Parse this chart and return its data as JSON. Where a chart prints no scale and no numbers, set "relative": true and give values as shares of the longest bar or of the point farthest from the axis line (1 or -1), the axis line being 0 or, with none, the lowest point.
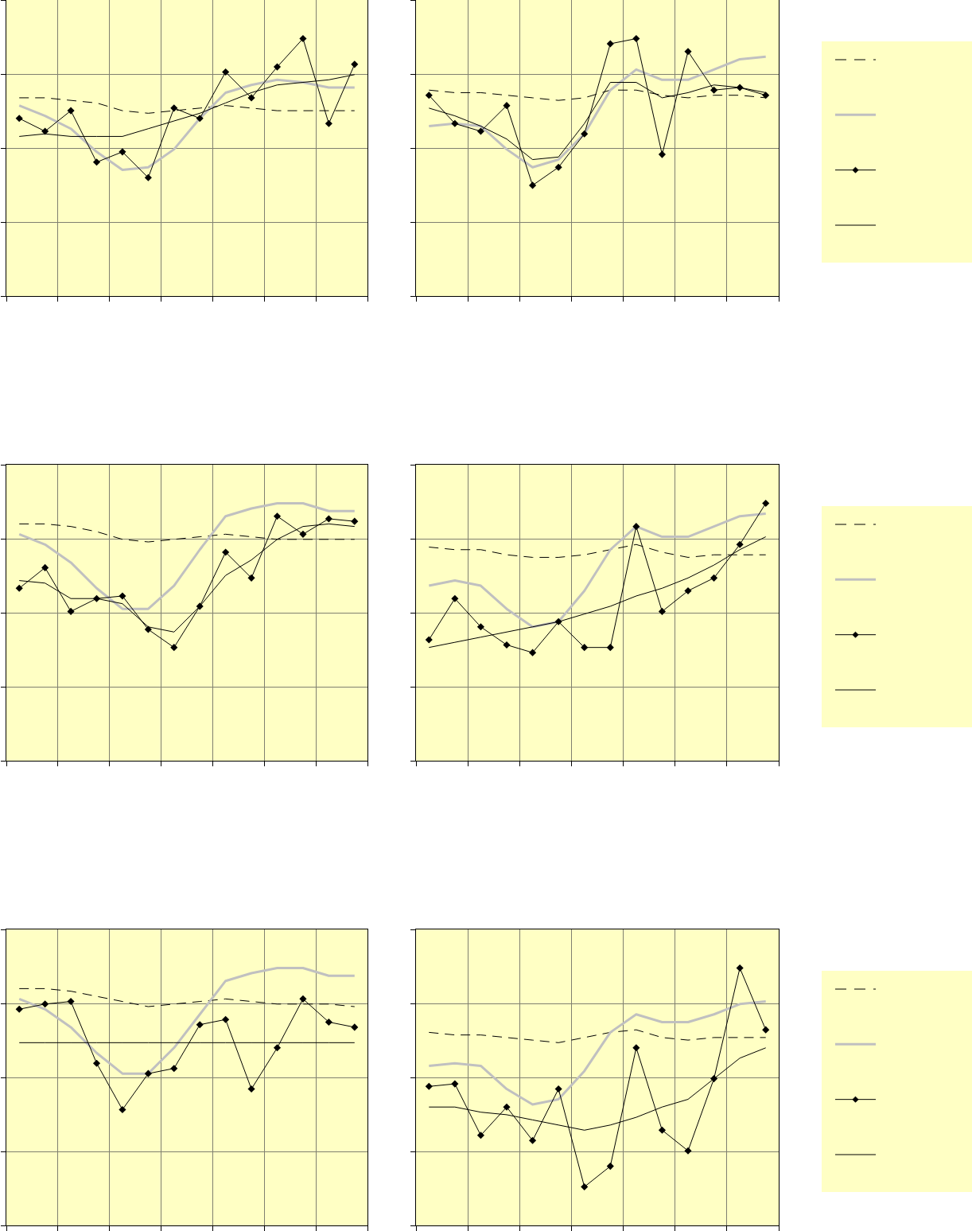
{
  "chart_data": [
    {
      "type": "line",
      "relative": true,
      "grid": true,
      "categories": [
        null,
        null,
        null,
        null,
        null,
        null,
        null,
        null,
        null,
        null,
        null,
        null,
        null,
        null
      ],
      "series": [
        {
          "color": "#000000",
          "line_style": "dashed",
          "values": [
            0.77,
            0.77,
            0.76,
            0.75,
            0.72,
            0.71,
            0.72,
            0.73,
            0.74,
            0.73,
            0.72,
            0.72,
            0.72,
            0.72
          ]
        },
        {
          "color": "#c0c0c0",
          "line_style": "solid",
          "values": [
            0.74,
            0.7,
            0.65,
            0.56,
            0.49,
            0.5,
            0.57,
            0.69,
            0.79,
            0.82,
            0.84,
            0.83,
            0.81,
            0.81
          ]
        },
        {
          "color": "#000000",
          "line_style": "solid",
          "marker": "diamond",
          "values": [
            0.69,
            0.64,
            0.72,
            0.52,
            0.56,
            0.46,
            0.73,
            0.69,
            0.87,
            0.77,
            0.89,
            1,
            0.67,
            0.9
          ]
        },
        {
          "color": "#000000",
          "line_style": "solid",
          "values": [
            0.62,
            0.63,
            0.62,
            0.62,
            0.62,
            0.65,
            0.68,
            0.71,
            0.75,
            0.79,
            0.82,
            0.83,
            0.84,
            0.86
          ]
        }
      ]
    },
    {
      "type": "line",
      "relative": true,
      "grid": true,
      "categories": [
        null,
        null,
        null,
        null,
        null,
        null,
        null,
        null,
        null,
        null,
        null,
        null,
        null,
        null
      ],
      "series": [
        {
          "color": "#000000",
          "line_style": "dashed",
          "values": [
            0.8,
            0.79,
            0.79,
            0.78,
            0.77,
            0.76,
            0.77,
            0.8,
            0.8,
            0.78,
            0.77,
            0.78,
            0.78,
            0.77
          ]
        },
        {
          "color": "#c0c0c0",
          "line_style": "solid",
          "values": [
            0.66,
            0.67,
            0.66,
            0.57,
            0.5,
            0.53,
            0.63,
            0.8,
            0.88,
            0.84,
            0.84,
            0.88,
            0.92,
            0.93
          ]
        },
        {
          "color": "#000000",
          "line_style": "solid",
          "marker": "diamond",
          "values": [
            0.78,
            0.67,
            0.64,
            0.74,
            0.43,
            0.5,
            0.63,
            0.98,
            1,
            0.55,
            0.95,
            0.8,
            0.81,
            0.78
          ]
        },
        {
          "color": "#000000",
          "line_style": "solid",
          "values": [
            0.73,
            0.7,
            0.66,
            0.61,
            0.53,
            0.54,
            0.67,
            0.83,
            0.83,
            0.77,
            0.79,
            0.82,
            0.81,
            0.79
          ]
        }
      ]
    },
    {
      "type": "line",
      "relative": true,
      "grid": true,
      "categories": [
        null,
        null,
        null,
        null,
        null,
        null,
        null,
        null,
        null,
        null,
        null,
        null,
        null,
        null
      ],
      "series": [
        {
          "color": "#000000",
          "line_style": "dashed",
          "values": [
            0.92,
            0.92,
            0.91,
            0.89,
            0.86,
            0.85,
            0.86,
            0.87,
            0.88,
            0.87,
            0.86,
            0.86,
            0.86,
            0.86
          ]
        },
        {
          "color": "#c0c0c0",
          "line_style": "solid",
          "values": [
            0.88,
            0.84,
            0.77,
            0.67,
            0.59,
            0.59,
            0.68,
            0.82,
            0.95,
            0.98,
            1,
            1,
            0.97,
            0.97
          ]
        },
        {
          "color": "#000000",
          "line_style": "solid",
          "marker": "diamond",
          "values": [
            0.67,
            0.75,
            0.58,
            0.63,
            0.64,
            0.51,
            0.44,
            0.6,
            0.81,
            0.71,
            0.95,
            0.88,
            0.94,
            0.93
          ]
        },
        {
          "color": "#000000",
          "line_style": "solid",
          "values": [
            0.7,
            0.69,
            0.63,
            0.63,
            0.61,
            0.52,
            0.5,
            0.6,
            0.72,
            0.78,
            0.86,
            0.91,
            0.92,
            0.91
          ]
        }
      ]
    },
    {
      "type": "line",
      "relative": true,
      "grid": true,
      "categories": [
        null,
        null,
        null,
        null,
        null,
        null,
        null,
        null,
        null,
        null,
        null,
        null,
        null,
        null
      ],
      "series": [
        {
          "color": "#000000",
          "line_style": "dashed",
          "values": [
            0.83,
            0.82,
            0.82,
            0.8,
            0.79,
            0.79,
            0.8,
            0.82,
            0.84,
            0.81,
            0.79,
            0.8,
            0.8,
            0.8
          ]
        },
        {
          "color": "#c0c0c0",
          "line_style": "solid",
          "values": [
            0.68,
            0.7,
            0.68,
            0.59,
            0.52,
            0.54,
            0.66,
            0.82,
            0.91,
            0.87,
            0.87,
            0.91,
            0.95,
            0.96
          ]
        },
        {
          "color": "#000000",
          "line_style": "solid",
          "marker": "diamond",
          "values": [
            0.47,
            0.63,
            0.52,
            0.45,
            0.42,
            0.54,
            0.44,
            0.44,
            0.91,
            0.58,
            0.66,
            0.71,
            0.84,
            1
          ]
        },
        {
          "color": "#000000",
          "line_style": "solid",
          "values": [
            0.44,
            0.46,
            0.48,
            0.5,
            0.52,
            0.54,
            0.57,
            0.6,
            0.64,
            0.67,
            0.71,
            0.76,
            0.82,
            0.87
          ]
        }
      ]
    },
    {
      "type": "line",
      "relative": true,
      "grid": true,
      "categories": [
        null,
        null,
        null,
        null,
        null,
        null,
        null,
        null,
        null,
        null,
        null,
        null,
        null,
        null
      ],
      "series": [
        {
          "color": "#000000",
          "line_style": "dashed",
          "values": [
            0.92,
            0.92,
            0.91,
            0.89,
            0.87,
            0.85,
            0.86,
            0.87,
            0.88,
            0.87,
            0.86,
            0.86,
            0.86,
            0.85
          ]
        },
        {
          "color": "#c0c0c0",
          "line_style": "solid",
          "values": [
            0.88,
            0.84,
            0.77,
            0.67,
            0.59,
            0.59,
            0.69,
            0.82,
            0.95,
            0.98,
            1,
            1,
            0.97,
            0.97
          ]
        },
        {
          "color": "#000000",
          "line_style": "solid",
          "marker": "diamond",
          "values": [
            0.84,
            0.86,
            0.87,
            0.63,
            0.45,
            0.59,
            0.61,
            0.78,
            0.8,
            0.53,
            0.69,
            0.88,
            0.79,
            0.77
          ]
        },
        {
          "color": "#000000",
          "line_style": "solid",
          "values": [
            0.71,
            0.71,
            0.71,
            0.71,
            0.71,
            0.71,
            0.71,
            0.71,
            0.71,
            0.71,
            0.71,
            0.71,
            0.71,
            0.71
          ]
        }
      ]
    },
    {
      "type": "line",
      "relative": true,
      "grid": true,
      "categories": [
        null,
        null,
        null,
        null,
        null,
        null,
        null,
        null,
        null,
        null,
        null,
        null,
        null,
        null
      ],
      "series": [
        {
          "color": "#000000",
          "line_style": "dashed",
          "values": [
            0.75,
            0.74,
            0.74,
            0.73,
            0.72,
            0.71,
            0.73,
            0.75,
            0.76,
            0.73,
            0.72,
            0.73,
            0.73,
            0.73
          ]
        },
        {
          "color": "#c0c0c0",
          "line_style": "solid",
          "values": [
            0.62,
            0.63,
            0.62,
            0.53,
            0.47,
            0.49,
            0.6,
            0.75,
            0.82,
            0.79,
            0.79,
            0.82,
            0.86,
            0.87
          ]
        },
        {
          "color": "#000000",
          "line_style": "solid",
          "marker": "diamond",
          "values": [
            0.54,
            0.55,
            0.35,
            0.46,
            0.33,
            0.53,
            0.15,
            0.23,
            0.69,
            0.37,
            0.29,
            0.57,
            1,
            0.76
          ]
        },
        {
          "color": "#000000",
          "line_style": "solid",
          "values": [
            0.46,
            0.46,
            0.44,
            0.43,
            0.41,
            0.39,
            0.37,
            0.39,
            0.42,
            0.46,
            0.49,
            0.57,
            0.65,
            0.69
          ]
        }
      ]
    }
  ]
}
